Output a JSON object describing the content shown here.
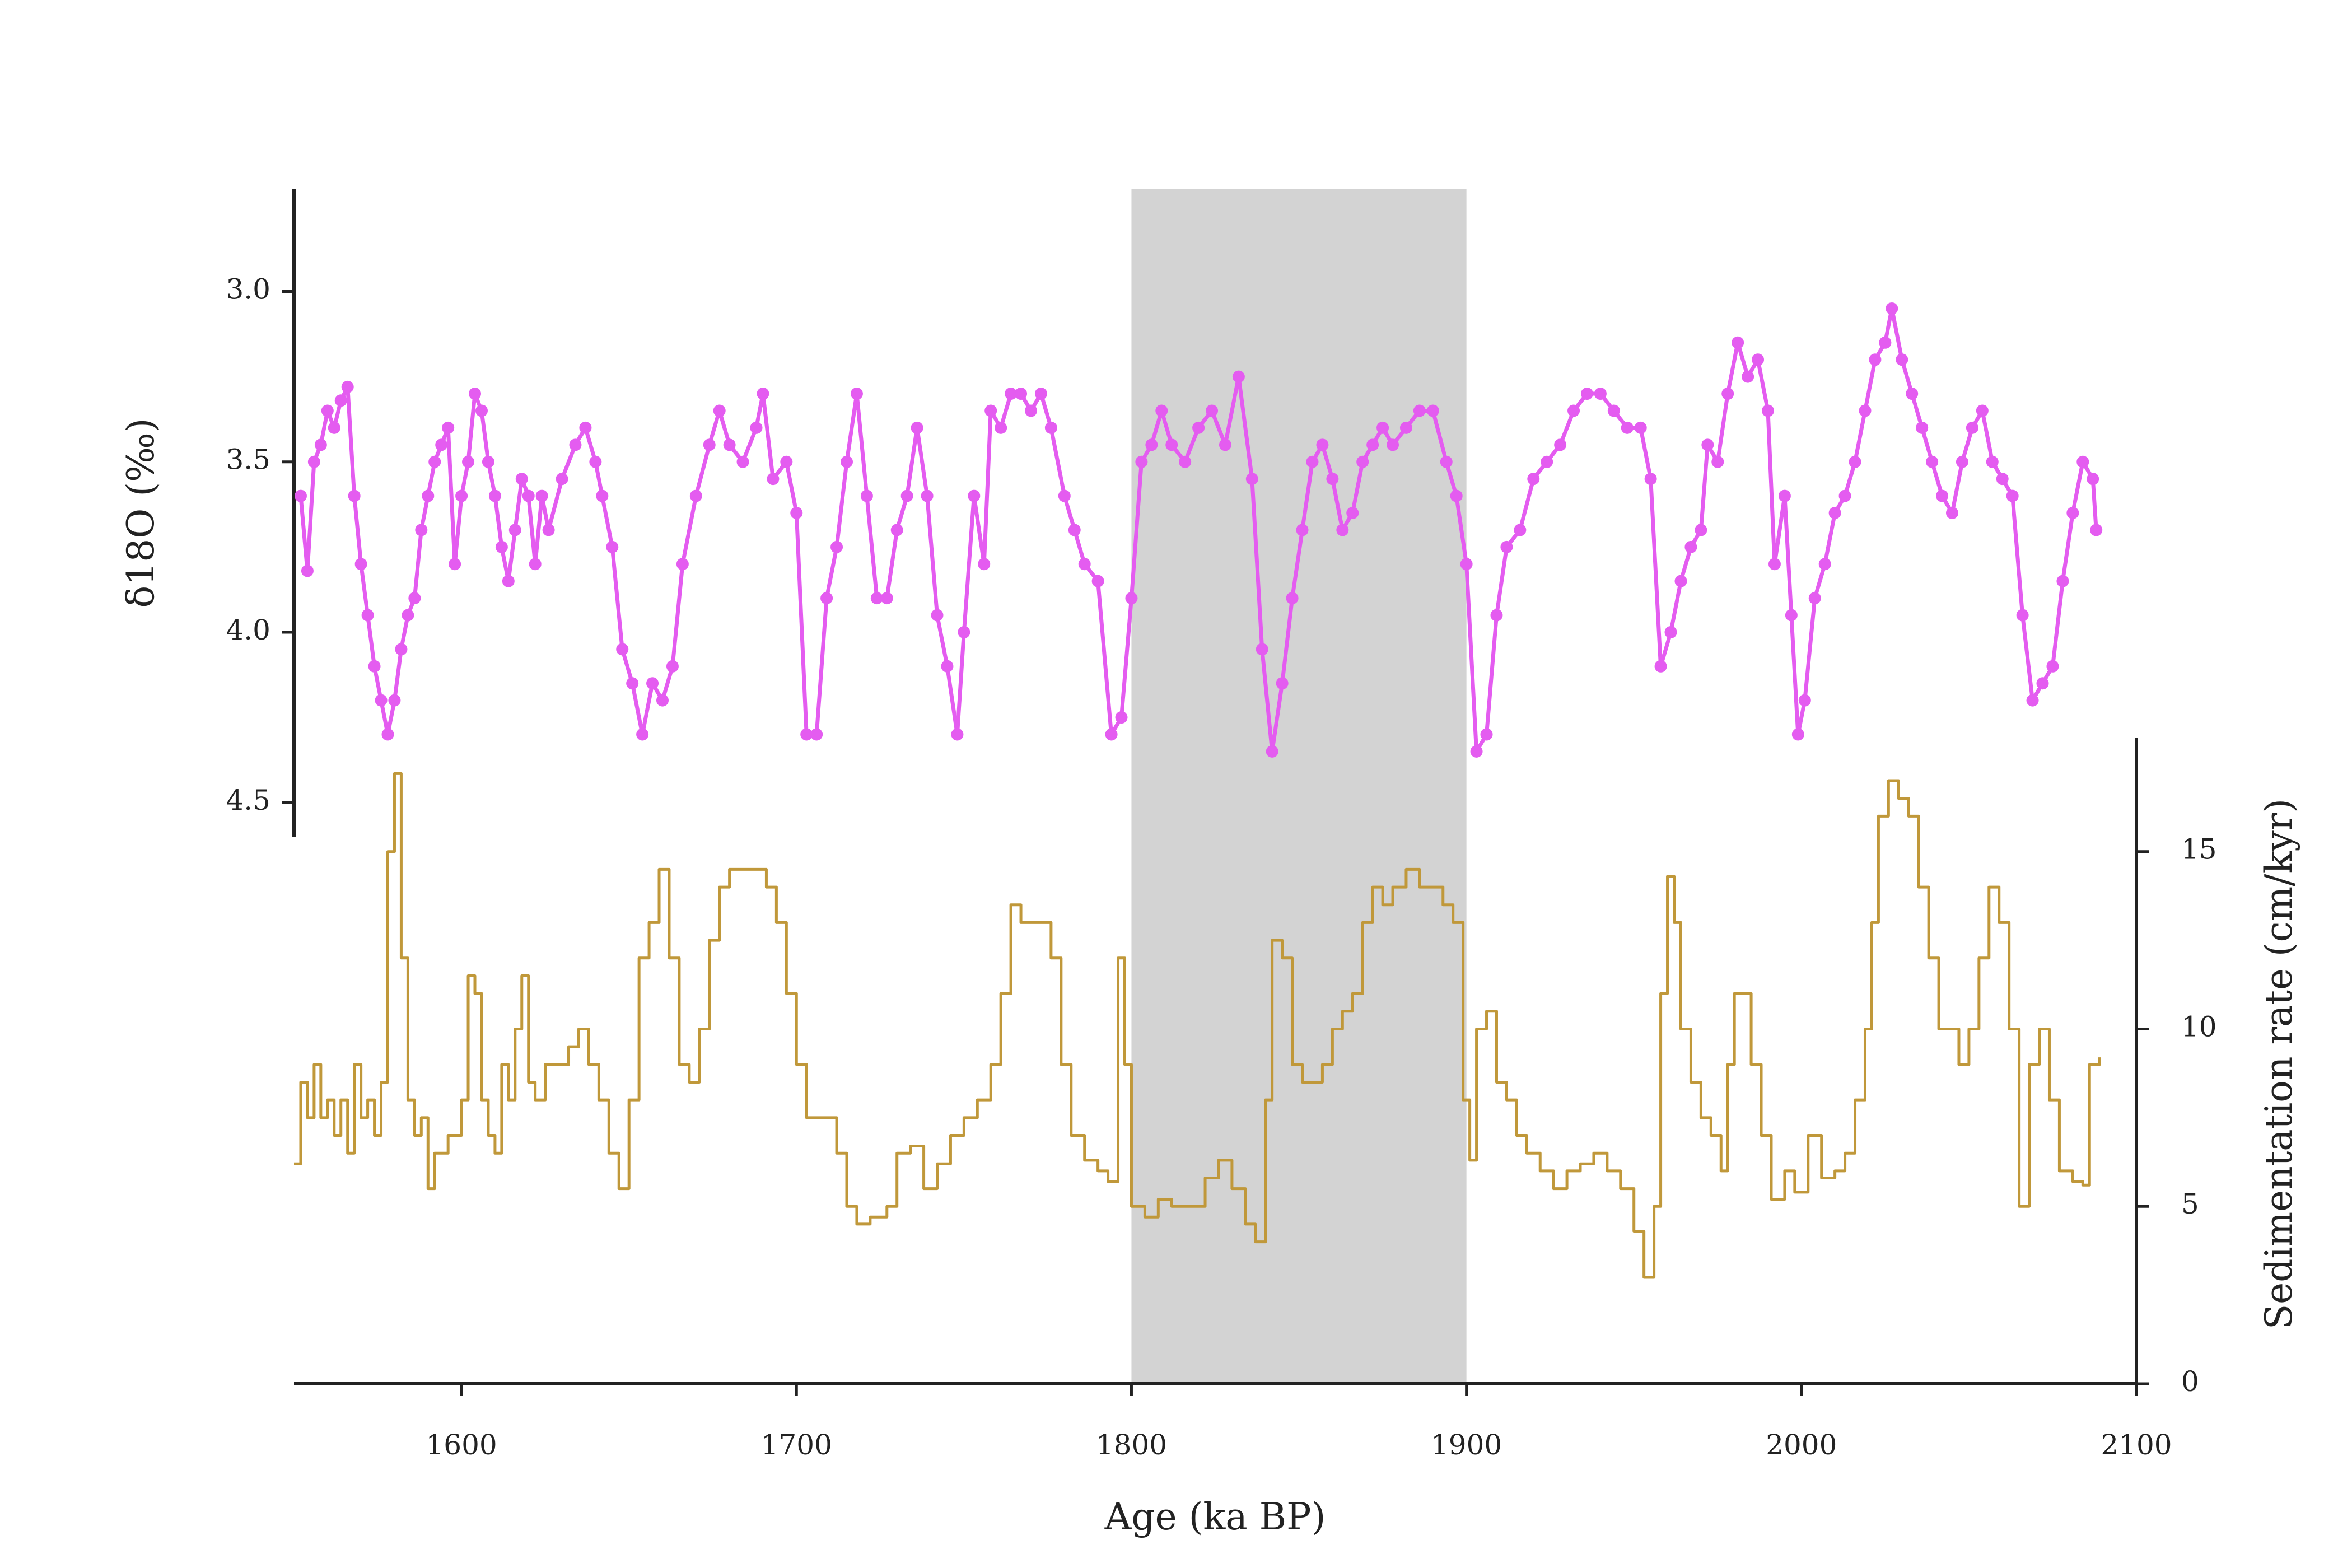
{
  "chart_data": {
    "type": "line",
    "x_label": "Age (ka BP)",
    "y_label": "δ18O (‰)",
    "y2_label": "Sedimentation rate (cm/kyr)",
    "xlim": [
      1550,
      2100
    ],
    "xticks": [
      1600,
      1700,
      1800,
      1900,
      2000,
      2100
    ],
    "ylim": [
      2.7,
      4.6
    ],
    "y_inverted": true,
    "yticks": [
      {
        "value": 3,
        "label": "3.0"
      },
      3.5,
      {
        "value": 4,
        "label": "4.0"
      },
      4.5
    ],
    "y2lim": [
      0,
      18.2
    ],
    "y2ticks": [
      0,
      5,
      10,
      15
    ],
    "shaded_span": {
      "range": [
        1800,
        1900
      ],
      "color": "#d3d3d3"
    },
    "series": [
      {
        "name": "δ18O",
        "color": "#e45cf0",
        "markers": true,
        "axis": "y",
        "x": [
          1552,
          1554,
          1556,
          1558,
          1560,
          1562,
          1564,
          1566,
          1568,
          1570,
          1572,
          1574,
          1576,
          1578,
          1580,
          1582,
          1584,
          1586,
          1588,
          1590,
          1592,
          1594,
          1596,
          1598,
          1600,
          1602,
          1604,
          1606,
          1608,
          1610,
          1612,
          1614,
          1616,
          1618,
          1620,
          1622,
          1624,
          1626,
          1630,
          1634,
          1637,
          1640,
          1642,
          1645,
          1648,
          1651,
          1654,
          1657,
          1660,
          1663,
          1666,
          1670,
          1674,
          1677,
          1680,
          1684,
          1688,
          1690,
          1693,
          1697,
          1700,
          1703,
          1706,
          1709,
          1712,
          1715,
          1718,
          1721,
          1724,
          1727,
          1730,
          1733,
          1736,
          1739,
          1742,
          1745,
          1748,
          1750,
          1753,
          1756,
          1758,
          1761,
          1764,
          1767,
          1770,
          1773,
          1776,
          1780,
          1783,
          1786,
          1790,
          1794,
          1797,
          1800,
          1803,
          1806,
          1809,
          1812,
          1816,
          1820,
          1824,
          1828,
          1832,
          1836,
          1839,
          1842,
          1845,
          1848,
          1851,
          1854,
          1857,
          1860,
          1863,
          1866,
          1869,
          1872,
          1875,
          1878,
          1882,
          1886,
          1890,
          1894,
          1897,
          1900,
          1903,
          1906,
          1909,
          1912,
          1916,
          1920,
          1924,
          1928,
          1932,
          1936,
          1940,
          1944,
          1948,
          1952,
          1955,
          1958,
          1961,
          1964,
          1967,
          1970,
          1972,
          1975,
          1978,
          1981,
          1984,
          1987,
          1990,
          1992,
          1995,
          1997,
          1999,
          2001,
          2004,
          2007,
          2010,
          2013,
          2016,
          2019,
          2022,
          2025,
          2027,
          2030,
          2033,
          2036,
          2039,
          2042,
          2045,
          2048,
          2051,
          2054,
          2057,
          2060,
          2063,
          2066,
          2069,
          2072,
          2075,
          2078,
          2081,
          2084,
          2087,
          2088
        ],
        "values": [
          3.6,
          3.82,
          3.5,
          3.45,
          3.35,
          3.4,
          3.32,
          3.28,
          3.6,
          3.8,
          3.95,
          4.1,
          4.2,
          4.3,
          4.2,
          4.05,
          3.95,
          3.9,
          3.7,
          3.6,
          3.5,
          3.45,
          3.4,
          3.8,
          3.6,
          3.5,
          3.3,
          3.35,
          3.5,
          3.6,
          3.75,
          3.85,
          3.7,
          3.55,
          3.6,
          3.8,
          3.6,
          3.7,
          3.55,
          3.45,
          3.4,
          3.5,
          3.6,
          3.75,
          4.05,
          4.15,
          4.3,
          4.15,
          4.2,
          4.1,
          3.8,
          3.6,
          3.45,
          3.35,
          3.45,
          3.5,
          3.4,
          3.3,
          3.55,
          3.5,
          3.65,
          4.3,
          4.3,
          3.9,
          3.75,
          3.5,
          3.3,
          3.6,
          3.9,
          3.9,
          3.7,
          3.6,
          3.4,
          3.6,
          3.95,
          4.1,
          4.3,
          4.0,
          3.6,
          3.8,
          3.35,
          3.4,
          3.3,
          3.3,
          3.35,
          3.3,
          3.4,
          3.6,
          3.7,
          3.8,
          3.85,
          4.3,
          4.25,
          3.9,
          3.5,
          3.45,
          3.35,
          3.45,
          3.5,
          3.4,
          3.35,
          3.45,
          3.25,
          3.55,
          4.05,
          4.35,
          4.15,
          3.9,
          3.7,
          3.5,
          3.45,
          3.55,
          3.7,
          3.65,
          3.5,
          3.45,
          3.4,
          3.45,
          3.4,
          3.35,
          3.35,
          3.5,
          3.6,
          3.8,
          4.35,
          4.3,
          3.95,
          3.75,
          3.7,
          3.55,
          3.5,
          3.45,
          3.35,
          3.3,
          3.3,
          3.35,
          3.4,
          3.4,
          3.55,
          4.1,
          4.0,
          3.85,
          3.75,
          3.7,
          3.45,
          3.5,
          3.3,
          3.15,
          3.25,
          3.2,
          3.35,
          3.8,
          3.6,
          3.95,
          4.3,
          4.2,
          3.9,
          3.8,
          3.65,
          3.6,
          3.5,
          3.35,
          3.2,
          3.15,
          3.05,
          3.2,
          3.3,
          3.4,
          3.5,
          3.6,
          3.65,
          3.5,
          3.4,
          3.35,
          3.5,
          3.55,
          3.6,
          3.95,
          4.2,
          4.15,
          4.1,
          3.85,
          3.65,
          3.5,
          3.55,
          3.7
        ]
      },
      {
        "name": "Sedimentation rate",
        "color": "#c0983a",
        "markers": false,
        "axis": "y2",
        "drawstyle": "steps-post",
        "x": [
          1550,
          1552,
          1554,
          1556,
          1558,
          1560,
          1562,
          1564,
          1566,
          1568,
          1570,
          1572,
          1574,
          1576,
          1578,
          1580,
          1582,
          1584,
          1586,
          1588,
          1590,
          1592,
          1596,
          1600,
          1602,
          1604,
          1606,
          1608,
          1610,
          1612,
          1614,
          1616,
          1618,
          1620,
          1622,
          1625,
          1628,
          1632,
          1635,
          1638,
          1641,
          1644,
          1647,
          1650,
          1653,
          1656,
          1659,
          1662,
          1665,
          1668,
          1671,
          1674,
          1677,
          1680,
          1684,
          1688,
          1691,
          1694,
          1697,
          1700,
          1703,
          1708,
          1712,
          1715,
          1718,
          1722,
          1727,
          1730,
          1734,
          1738,
          1742,
          1746,
          1750,
          1754,
          1758,
          1761,
          1764,
          1767,
          1770,
          1773,
          1776,
          1779,
          1782,
          1786,
          1790,
          1793,
          1796,
          1798,
          1800,
          1804,
          1808,
          1812,
          1818,
          1822,
          1826,
          1830,
          1834,
          1837,
          1840,
          1842,
          1845,
          1848,
          1851,
          1854,
          1857,
          1860,
          1863,
          1866,
          1869,
          1872,
          1875,
          1878,
          1882,
          1886,
          1890,
          1893,
          1896,
          1899,
          1901,
          1903,
          1906,
          1909,
          1912,
          1915,
          1918,
          1922,
          1926,
          1930,
          1934,
          1938,
          1942,
          1946,
          1950,
          1953,
          1956,
          1958,
          1960,
          1962,
          1964,
          1967,
          1970,
          1973,
          1976,
          1978,
          1980,
          1982,
          1985,
          1988,
          1991,
          1995,
          1998,
          2002,
          2006,
          2010,
          2013,
          2016,
          2019,
          2021,
          2023,
          2026,
          2029,
          2032,
          2035,
          2038,
          2041,
          2044,
          2047,
          2050,
          2053,
          2056,
          2059,
          2062,
          2065,
          2068,
          2071,
          2074,
          2077,
          2081,
          2084,
          2086,
          2089
        ],
        "values": [
          6.2,
          8.5,
          7.5,
          9,
          7.5,
          8,
          7,
          8,
          6.5,
          9,
          7.5,
          8,
          7,
          8.5,
          15,
          17.2,
          12,
          8,
          7,
          7.5,
          5.5,
          6.5,
          7,
          8,
          11.5,
          11,
          8,
          7,
          6.5,
          9,
          8,
          10,
          11.5,
          8.5,
          8,
          9,
          9,
          9.5,
          10,
          9,
          8,
          6.5,
          5.5,
          8,
          12,
          13,
          14.5,
          12,
          9,
          8.5,
          10,
          12.5,
          14,
          14.5,
          14.5,
          14.5,
          14,
          13,
          11,
          9,
          7.5,
          7.5,
          6.5,
          5,
          4.5,
          4.7,
          5,
          6.5,
          6.7,
          5.5,
          6.2,
          7,
          7.5,
          8,
          9,
          11,
          13.5,
          13,
          13,
          13,
          12,
          9,
          7,
          6.3,
          6,
          5.7,
          12,
          9,
          5,
          4.7,
          5.2,
          5,
          5,
          5.8,
          6.3,
          5.5,
          4.5,
          4,
          8,
          12.5,
          12,
          9,
          8.5,
          8.5,
          9,
          10,
          10.5,
          11,
          13,
          14,
          13.5,
          14,
          14.5,
          14,
          14,
          13.5,
          13,
          8,
          6.3,
          10,
          10.5,
          8.5,
          8,
          7,
          6.5,
          6,
          5.5,
          6,
          6.2,
          6.5,
          6,
          5.5,
          4.3,
          3,
          5,
          11,
          14.3,
          13,
          10,
          8.5,
          7.5,
          7,
          6,
          9,
          11,
          11,
          9,
          7,
          5.2,
          6,
          5.4,
          7,
          5.8,
          6,
          6.5,
          8,
          10,
          13,
          16,
          17,
          16.5,
          16,
          14,
          12,
          10,
          10,
          9,
          10,
          12,
          14,
          13,
          10,
          5,
          9,
          10,
          8,
          6,
          5.7,
          5.6,
          9,
          9.2
        ]
      }
    ]
  }
}
